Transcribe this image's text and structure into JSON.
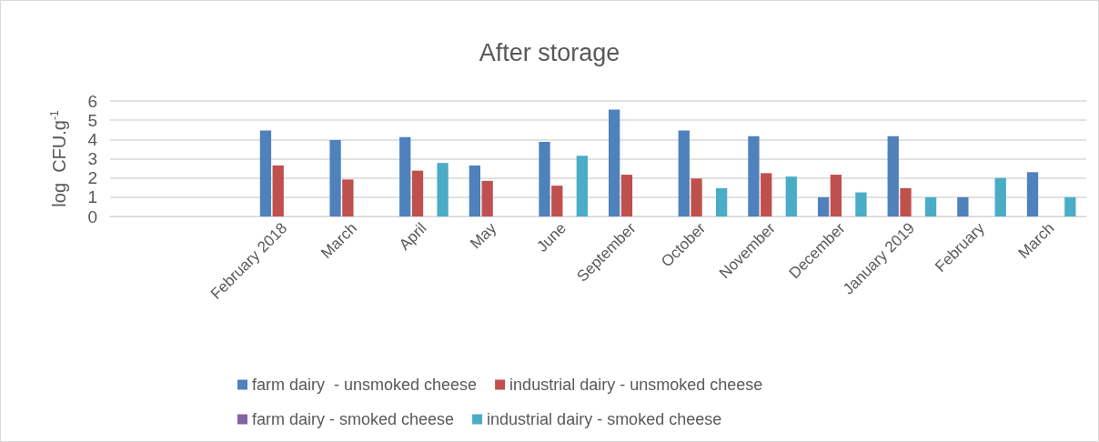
{
  "chart_data": {
    "type": "bar",
    "title": "After storage",
    "ylabel": "log  CFU.g$^{-1}$",
    "categories": [
      null,
      null,
      "February 2018",
      "March",
      "April",
      "May",
      "June",
      "September",
      "October",
      "November",
      "December",
      "January 2019",
      "February",
      "March"
    ],
    "series": [
      {
        "name": "farm dairy  - unsmoked cheese",
        "color": "#4f81bd",
        "values": [
          null,
          null,
          4.47,
          3.97,
          4.12,
          2.65,
          3.87,
          5.55,
          4.47,
          4.17,
          1.0,
          4.17,
          1.0,
          2.3
        ]
      },
      {
        "name": "industrial dairy - unsmoked cheese",
        "color": "#c0504d",
        "values": [
          null,
          null,
          2.65,
          1.92,
          2.38,
          1.85,
          1.6,
          2.17,
          1.97,
          2.25,
          2.17,
          1.47,
          null,
          null
        ]
      },
      {
        "name": "farm dairy - smoked cheese",
        "color": "#8064a2",
        "values": [
          null,
          null,
          null,
          null,
          null,
          null,
          null,
          null,
          null,
          null,
          null,
          null,
          null,
          null
        ]
      },
      {
        "name": "industrial dairy - smoked cheese",
        "color": "#4bacc6",
        "values": [
          null,
          null,
          null,
          null,
          2.78,
          null,
          3.15,
          null,
          1.47,
          2.07,
          1.25,
          1.0,
          2.0,
          1.0
        ]
      }
    ],
    "ylim": [
      0,
      6
    ],
    "yticks": [
      0,
      1,
      2,
      3,
      4,
      5,
      6
    ],
    "grid": "y",
    "legend": "bottom"
  }
}
